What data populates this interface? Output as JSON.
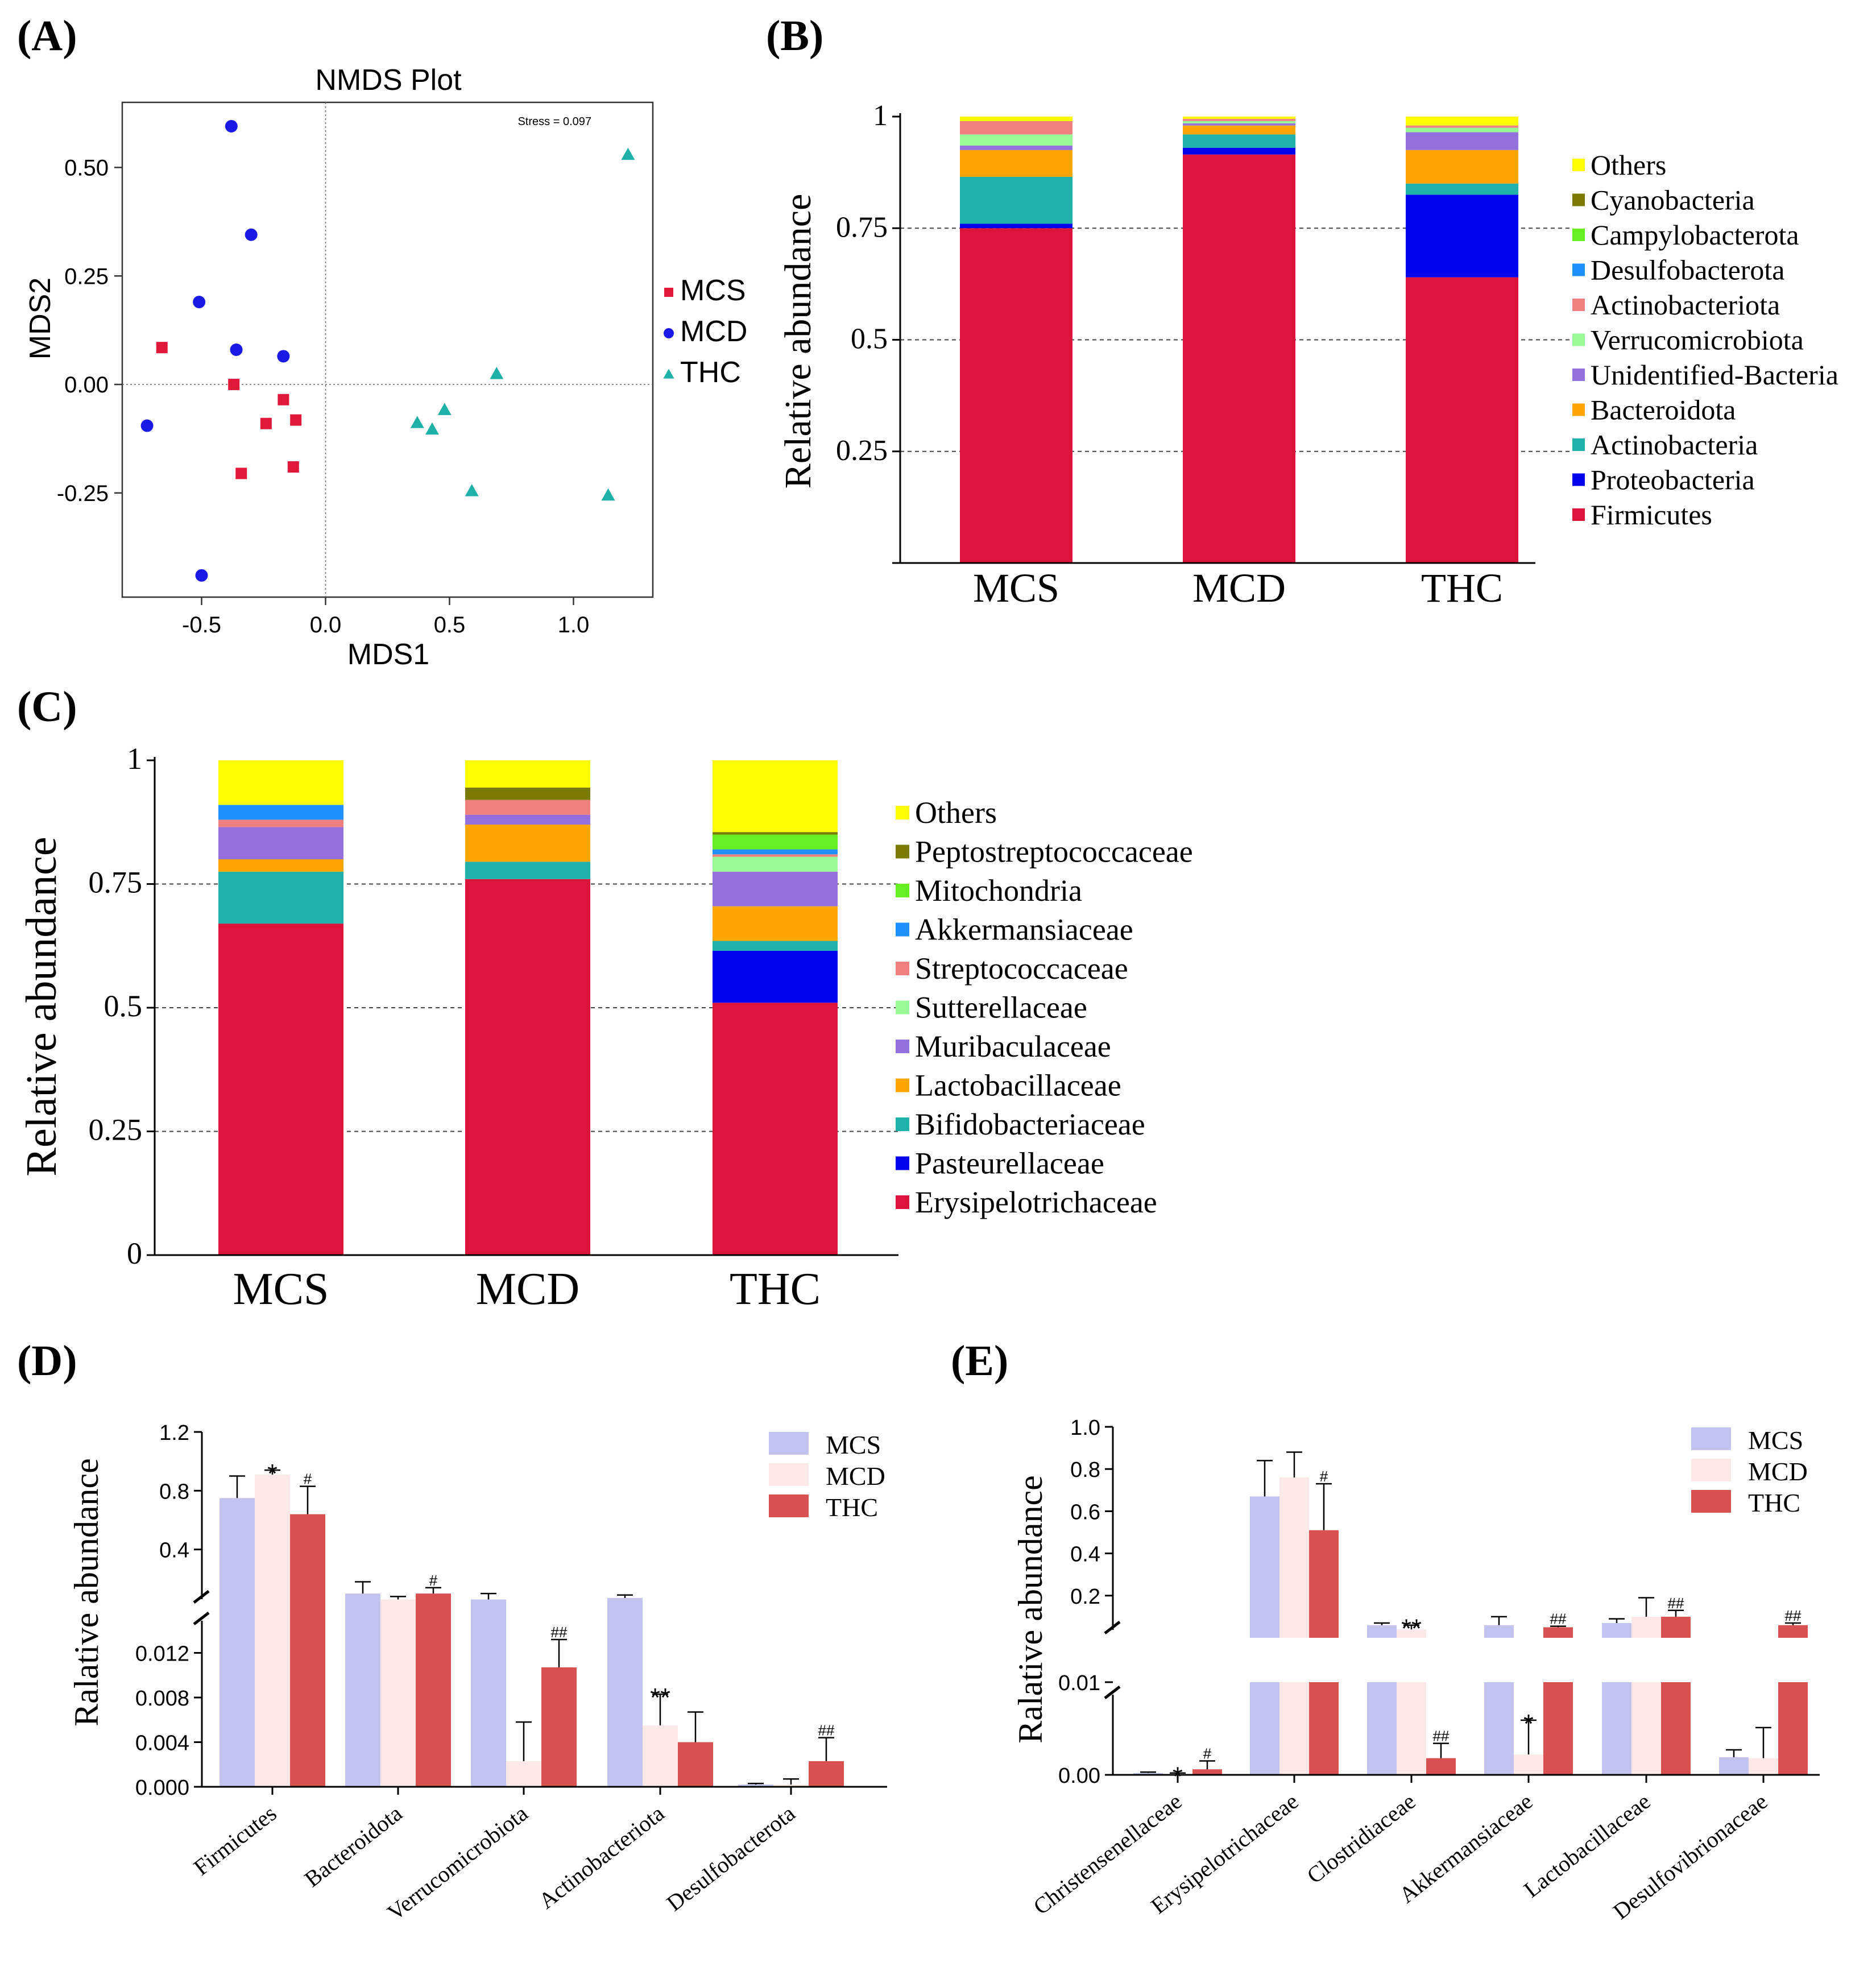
{
  "panel_labels": [
    "(A)",
    "(B)",
    "(C)",
    "(D)",
    "(E)"
  ],
  "chart_data": [
    {
      "id": "A",
      "type": "scatter",
      "title": "NMDS Plot",
      "xlabel": "MDS1",
      "ylabel": "MDS2",
      "annotation": "Stress = 0.097",
      "xlim": [
        -0.82,
        1.32
      ],
      "ylim": [
        -0.49,
        0.65
      ],
      "xticks": [
        -0.5,
        0.0,
        0.5,
        1.0
      ],
      "xtick_labels": [
        "-0.5",
        "0.0",
        "0.5",
        "1.0"
      ],
      "yticks": [
        -0.25,
        0.0,
        0.25,
        0.5
      ],
      "ytick_labels": [
        "-0.25",
        "0.00",
        "0.25",
        "0.50"
      ],
      "legend_position": "right",
      "series": [
        {
          "name": "MCS",
          "color": "#e0183a",
          "marker": "square",
          "points": [
            [
              -0.66,
              0.085
            ],
            [
              -0.37,
              0.0
            ],
            [
              -0.17,
              -0.035
            ],
            [
              -0.24,
              -0.09
            ],
            [
              -0.12,
              -0.082
            ],
            [
              -0.34,
              -0.205
            ],
            [
              -0.13,
              -0.19
            ]
          ]
        },
        {
          "name": "MCD",
          "color": "#1a1ae6",
          "marker": "circle",
          "points": [
            [
              -0.38,
              0.595
            ],
            [
              -0.3,
              0.345
            ],
            [
              -0.51,
              0.19
            ],
            [
              -0.36,
              0.08
            ],
            [
              -0.17,
              0.065
            ],
            [
              -0.72,
              -0.095
            ],
            [
              -0.5,
              -0.44
            ]
          ]
        },
        {
          "name": "THC",
          "color": "#1fb1a8",
          "marker": "triangle",
          "points": [
            [
              1.22,
              0.53
            ],
            [
              0.69,
              0.025
            ],
            [
              0.48,
              -0.058
            ],
            [
              0.37,
              -0.088
            ],
            [
              0.43,
              -0.103
            ],
            [
              0.59,
              -0.245
            ],
            [
              1.14,
              -0.255
            ]
          ]
        }
      ]
    },
    {
      "id": "B",
      "type": "bar",
      "stacked": true,
      "ylabel": "Relative abundance",
      "ylim": [
        0,
        1
      ],
      "yticks": [
        0,
        0.25,
        0.5,
        0.75,
        1
      ],
      "ytick_labels": [
        "",
        "0.25",
        "0.5",
        "0.75",
        "1"
      ],
      "categories": [
        "MCS",
        "MCD",
        "THC"
      ],
      "series": [
        {
          "name": "Firmicutes",
          "color": "#dc143c",
          "values": [
            0.75,
            0.915,
            0.64
          ]
        },
        {
          "name": "Proteobacteria",
          "color": "#0000ee",
          "values": [
            0.01,
            0.015,
            0.185
          ]
        },
        {
          "name": "Actinobacteria",
          "color": "#20b2aa",
          "values": [
            0.105,
            0.03,
            0.025
          ]
        },
        {
          "name": "Bacteroidota",
          "color": "#ffa500",
          "values": [
            0.06,
            0.02,
            0.075
          ]
        },
        {
          "name": "Unidentified-Bacteria",
          "color": "#9370db",
          "values": [
            0.01,
            0.005,
            0.04
          ]
        },
        {
          "name": "Verrucomicrobiota",
          "color": "#98fb98",
          "values": [
            0.025,
            0.005,
            0.01
          ]
        },
        {
          "name": "Actinobacteriota",
          "color": "#f08080",
          "values": [
            0.03,
            0.005,
            0.005
          ]
        },
        {
          "name": "Desulfobacterota",
          "color": "#1e90ff",
          "values": [
            0.0,
            0.0,
            0.0
          ]
        },
        {
          "name": "Campylobacterota",
          "color": "#66ee22",
          "values": [
            0.0,
            0.0,
            0.0
          ]
        },
        {
          "name": "Cyanobacteria",
          "color": "#7a7a00",
          "values": [
            0.0,
            0.0,
            0.0
          ]
        },
        {
          "name": "Others",
          "color": "#ffff00",
          "values": [
            0.01,
            0.005,
            0.02
          ]
        }
      ]
    },
    {
      "id": "C",
      "type": "bar",
      "stacked": true,
      "ylabel": "Relative abundance",
      "ylim": [
        0,
        1
      ],
      "yticks": [
        0,
        0.25,
        0.5,
        0.75,
        1
      ],
      "ytick_labels": [
        "0",
        "0.25",
        "0.5",
        "0.75",
        "1"
      ],
      "categories": [
        "MCS",
        "MCD",
        "THC"
      ],
      "series": [
        {
          "name": "Erysipelotrichaceae",
          "color": "#dc143c",
          "values": [
            0.67,
            0.76,
            0.51
          ]
        },
        {
          "name": "Pasteurellaceae",
          "color": "#0000ee",
          "values": [
            0.0,
            0.0,
            0.105
          ]
        },
        {
          "name": "Bifidobacteriaceae",
          "color": "#20b2aa",
          "values": [
            0.105,
            0.035,
            0.02
          ]
        },
        {
          "name": "Lactobacillaceae",
          "color": "#ffa500",
          "values": [
            0.025,
            0.075,
            0.07
          ]
        },
        {
          "name": "Muribaculaceae",
          "color": "#9370db",
          "values": [
            0.065,
            0.02,
            0.07
          ]
        },
        {
          "name": "Sutterellaceae",
          "color": "#98fb98",
          "values": [
            0.0,
            0.0,
            0.03
          ]
        },
        {
          "name": "Streptococcaceae",
          "color": "#f08080",
          "values": [
            0.015,
            0.03,
            0.005
          ]
        },
        {
          "name": "Akkermansiaceae",
          "color": "#1e90ff",
          "values": [
            0.03,
            0.0,
            0.01
          ]
        },
        {
          "name": "Mitochondria",
          "color": "#66ee22",
          "values": [
            0.0,
            0.0,
            0.03
          ]
        },
        {
          "name": "Peptostreptococcaceae",
          "color": "#7a7a00",
          "values": [
            0.0,
            0.025,
            0.005
          ]
        },
        {
          "name": "Others",
          "color": "#ffff00",
          "values": [
            0.09,
            0.055,
            0.145
          ]
        }
      ]
    },
    {
      "id": "D",
      "type": "bar",
      "grouped": true,
      "broken_axis": true,
      "ylabel": "Ralative abundance",
      "categories": [
        "Firmicutes",
        "Bacteroidota",
        "Verrucomicrobiota",
        "Actinobacteriota",
        "Desulfobacterota"
      ],
      "upper_ylim": [
        0.0,
        1.2
      ],
      "upper_yticks": [
        0.4,
        0.8,
        1.2
      ],
      "upper_ytick_labels": [
        "0.4",
        "0.8",
        "1.2"
      ],
      "lower_ylim": [
        0.0,
        0.016
      ],
      "lower_yticks": [
        0.0,
        0.004,
        0.008,
        0.012
      ],
      "lower_ytick_labels": [
        "0.000",
        "0.004",
        "0.008",
        "0.012"
      ],
      "series": [
        {
          "name": "MCS",
          "color": "#c3c3f0",
          "values": [
            0.75,
            0.1,
            0.06,
            0.07,
            0.0002
          ],
          "errors": [
            0.15,
            0.08,
            0.04,
            0.02,
            0.0001
          ],
          "labels": [
            "",
            "",
            "",
            "",
            ""
          ]
        },
        {
          "name": "MCD",
          "color": "#fde8e8",
          "values": [
            0.91,
            0.06,
            0.0023,
            0.0055,
            0.0002
          ],
          "errors": [
            0.03,
            0.02,
            0.0035,
            0.0028,
            0.0005
          ],
          "labels": [
            "*",
            "",
            "",
            "**",
            ""
          ]
        },
        {
          "name": "THC",
          "color": "#d95050",
          "values": [
            0.64,
            0.1,
            0.0107,
            0.004,
            0.0023
          ],
          "errors": [
            0.19,
            0.04,
            0.0025,
            0.0027,
            0.0021
          ],
          "labels": [
            "#",
            "#",
            "##",
            "",
            "##"
          ]
        }
      ]
    },
    {
      "id": "E",
      "type": "bar",
      "grouped": true,
      "broken_axis": true,
      "ylabel": "Ralative abundance",
      "categories": [
        "Christensenellaceae",
        "Erysipelotrichaceae",
        "Clostridiaceae",
        "Akkermansiaceae",
        "Lactobacillaceae",
        "Desulfovibrionaceae"
      ],
      "upper_ylim": [
        0.0,
        1.0
      ],
      "upper_yticks": [
        0.2,
        0.4,
        0.6,
        0.8,
        1.0
      ],
      "upper_ytick_labels": [
        "0.2",
        "0.4",
        "0.6",
        "0.8",
        "1.0"
      ],
      "lower_ylim": [
        0.0,
        0.01
      ],
      "lower_yticks": [
        0.0,
        0.01
      ],
      "lower_ytick_labels": [
        "0.00",
        "0.01"
      ],
      "series": [
        {
          "name": "MCS",
          "color": "#c3c3f0",
          "values": [
            0.0002,
            0.67,
            0.06,
            0.06,
            0.07,
            0.0019
          ],
          "errors": [
            0.0001,
            0.17,
            0.01,
            0.04,
            0.02,
            0.0008
          ],
          "labels": [
            "",
            "",
            "",
            "",
            "",
            ""
          ]
        },
        {
          "name": "MCD",
          "color": "#fde8e8",
          "values": [
            0.0001,
            0.76,
            0.04,
            0.0022,
            0.1,
            0.0018
          ],
          "errors": [
            0.0001,
            0.12,
            0.02,
            0.0037,
            0.09,
            0.0033
          ],
          "labels": [
            "*",
            "",
            "**",
            "*",
            "",
            ""
          ]
        },
        {
          "name": "THC",
          "color": "#d95050",
          "values": [
            0.0006,
            0.51,
            0.0018,
            0.05,
            0.1,
            0.06
          ],
          "errors": [
            0.0009,
            0.22,
            0.0016,
            0.005,
            0.03,
            0.01
          ],
          "labels": [
            "#",
            "#",
            "##",
            "##",
            "##",
            "##"
          ]
        }
      ]
    }
  ]
}
